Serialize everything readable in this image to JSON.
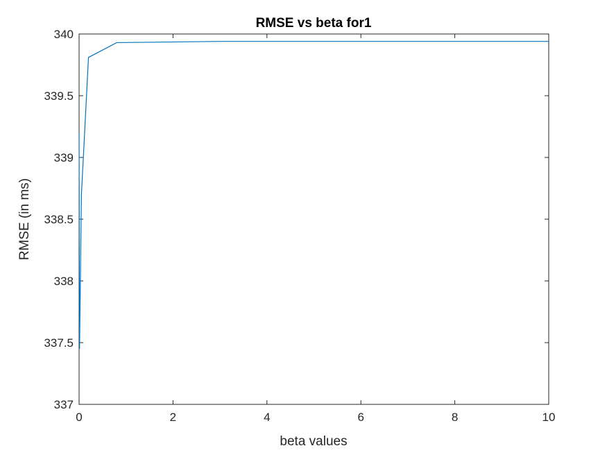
{
  "chart_data": {
    "type": "line",
    "title": "RMSE vs beta for1",
    "xlabel": "beta values",
    "ylabel": "RMSE (in ms)",
    "xlim": [
      0,
      10
    ],
    "ylim": [
      337,
      340
    ],
    "xticks": [
      0,
      2,
      4,
      6,
      8,
      10
    ],
    "yticks": [
      337,
      337.5,
      338,
      338.5,
      339,
      339.5,
      340
    ],
    "ytick_labels": [
      "337",
      "337.5",
      "338",
      "338.5",
      "339",
      "339.5",
      "340"
    ],
    "grid": false,
    "series": [
      {
        "color": "#0072BD",
        "x": [
          0,
          0.01,
          0.05,
          0.2,
          0.8,
          3,
          10
        ],
        "y": [
          339.2,
          337.45,
          338.7,
          339.81,
          339.93,
          339.94,
          339.94
        ]
      }
    ]
  }
}
